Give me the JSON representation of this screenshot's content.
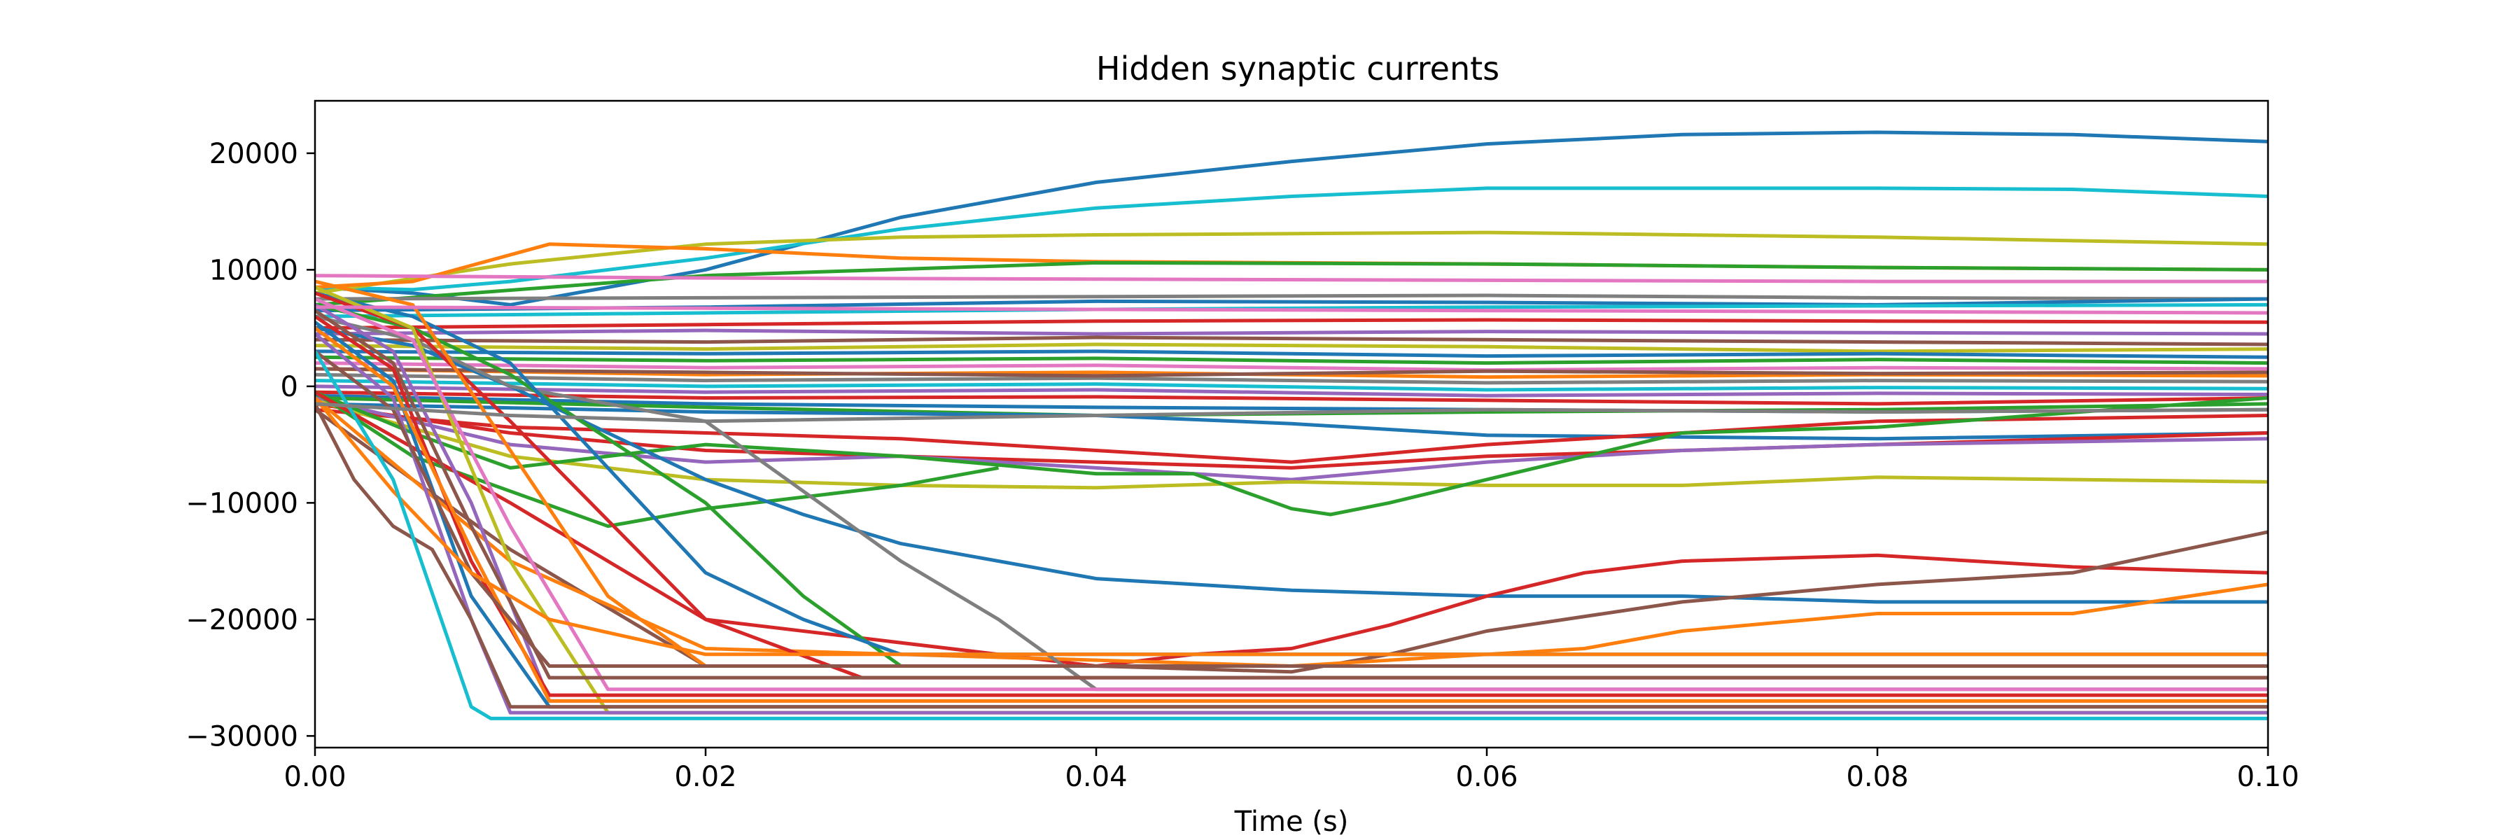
{
  "chart_data": {
    "type": "line",
    "title": "Hidden synaptic currents",
    "xlabel": "Time (s)",
    "ylabel": "",
    "xlim": [
      0,
      0.1
    ],
    "ylim": [
      -31000,
      24500
    ],
    "xticks": [
      0,
      0.02,
      0.04,
      0.06,
      0.08,
      0.1
    ],
    "xtick_labels": [
      "0.00",
      "0.02",
      "0.04",
      "0.06",
      "0.08",
      "0.10"
    ],
    "yticks": [
      -30000,
      -20000,
      -10000,
      0,
      10000,
      20000
    ],
    "ytick_labels": [
      "−30000",
      "−20000",
      "−10000",
      "0",
      "10000",
      "20000"
    ],
    "grid": false,
    "legend": "none",
    "colors": [
      "#1f77b4",
      "#ff7f0e",
      "#2ca02c",
      "#d62728",
      "#9467bd",
      "#8c564b",
      "#e377c2",
      "#7f7f7f",
      "#bcbd22",
      "#17becf"
    ],
    "series": [
      {
        "color": "#1f77b4",
        "x": [
          0,
          0.005,
          0.01,
          0.02,
          0.03,
          0.04,
          0.05,
          0.06,
          0.07,
          0.08,
          0.09,
          0.1
        ],
        "y": [
          8500,
          8000,
          7000,
          10000,
          14500,
          17500,
          19300,
          20800,
          21600,
          21800,
          21600,
          21000
        ]
      },
      {
        "color": "#17becf",
        "x": [
          0,
          0.005,
          0.01,
          0.02,
          0.03,
          0.04,
          0.05,
          0.06,
          0.07,
          0.08,
          0.09,
          0.1
        ],
        "y": [
          8500,
          8300,
          9000,
          11000,
          13500,
          15300,
          16300,
          17000,
          17000,
          17000,
          16900,
          16300
        ]
      },
      {
        "color": "#bcbd22",
        "x": [
          0,
          0.01,
          0.02,
          0.03,
          0.04,
          0.06,
          0.08,
          0.1
        ],
        "y": [
          8000,
          10500,
          12200,
          12800,
          13000,
          13200,
          12800,
          12200
        ]
      },
      {
        "color": "#ff7f0e",
        "x": [
          0,
          0.005,
          0.012,
          0.02,
          0.03,
          0.04,
          0.06,
          0.08,
          0.1
        ],
        "y": [
          8500,
          9000,
          12200,
          11800,
          11000,
          10700,
          10500,
          10200,
          10000
        ]
      },
      {
        "color": "#2ca02c",
        "x": [
          0,
          0.02,
          0.04,
          0.06,
          0.08,
          0.1
        ],
        "y": [
          7000,
          9500,
          10600,
          10500,
          10200,
          10000
        ]
      },
      {
        "color": "#e377c2",
        "x": [
          0,
          0.02,
          0.04,
          0.06,
          0.08,
          0.1
        ],
        "y": [
          9500,
          9300,
          9200,
          9100,
          9000,
          9000
        ]
      },
      {
        "color": "#7f7f7f",
        "x": [
          0,
          0.02,
          0.04,
          0.06,
          0.08,
          0.1
        ],
        "y": [
          7500,
          7600,
          7700,
          7800,
          7600,
          7500
        ]
      },
      {
        "color": "#1f77b4",
        "x": [
          0,
          0.02,
          0.04,
          0.06,
          0.08,
          0.1
        ],
        "y": [
          6500,
          6800,
          7300,
          7200,
          7000,
          7500
        ]
      },
      {
        "color": "#17becf",
        "x": [
          0,
          0.02,
          0.04,
          0.06,
          0.08,
          0.1
        ],
        "y": [
          6000,
          6300,
          6600,
          6800,
          6900,
          7000
        ]
      },
      {
        "color": "#d62728",
        "x": [
          0,
          0.02,
          0.04,
          0.06,
          0.08,
          0.1
        ],
        "y": [
          5000,
          5300,
          5600,
          5700,
          5600,
          5500
        ]
      },
      {
        "color": "#9467bd",
        "x": [
          0,
          0.02,
          0.04,
          0.06,
          0.08,
          0.1
        ],
        "y": [
          4500,
          4800,
          4500,
          4700,
          4600,
          4500
        ]
      },
      {
        "color": "#8c564b",
        "x": [
          0,
          0.02,
          0.04,
          0.06,
          0.08,
          0.1
        ],
        "y": [
          4000,
          3800,
          4200,
          4000,
          3800,
          3600
        ]
      },
      {
        "color": "#bcbd22",
        "x": [
          0,
          0.02,
          0.04,
          0.06,
          0.08,
          0.1
        ],
        "y": [
          3500,
          3200,
          3600,
          3400,
          3000,
          3200
        ]
      },
      {
        "color": "#1f77b4",
        "x": [
          0,
          0.02,
          0.04,
          0.06,
          0.08,
          0.1
        ],
        "y": [
          3000,
          2800,
          3000,
          2600,
          2800,
          2500
        ]
      },
      {
        "color": "#2ca02c",
        "x": [
          0,
          0.02,
          0.04,
          0.06,
          0.08,
          0.1
        ],
        "y": [
          2500,
          2200,
          2400,
          2000,
          2300,
          2000
        ]
      },
      {
        "color": "#e377c2",
        "x": [
          0,
          0.02,
          0.04,
          0.06,
          0.08,
          0.1
        ],
        "y": [
          2000,
          1600,
          1800,
          1400,
          1600,
          1500
        ]
      },
      {
        "color": "#ff7f0e",
        "x": [
          0,
          0.02,
          0.04,
          0.06,
          0.08,
          0.1
        ],
        "y": [
          1500,
          1000,
          1200,
          800,
          1000,
          900
        ]
      },
      {
        "color": "#7f7f7f",
        "x": [
          0,
          0.02,
          0.04,
          0.06,
          0.08,
          0.1
        ],
        "y": [
          1000,
          500,
          700,
          300,
          500,
          400
        ]
      },
      {
        "color": "#17becf",
        "x": [
          0,
          0.02,
          0.04,
          0.06,
          0.08,
          0.1
        ],
        "y": [
          500,
          0,
          200,
          -300,
          -100,
          -200
        ]
      },
      {
        "color": "#9467bd",
        "x": [
          0,
          0.02,
          0.04,
          0.06,
          0.08,
          0.1
        ],
        "y": [
          0,
          -500,
          -300,
          -800,
          -600,
          -700
        ]
      },
      {
        "color": "#d62728",
        "x": [
          0,
          0.02,
          0.04,
          0.06,
          0.08,
          0.1
        ],
        "y": [
          -500,
          -1000,
          -900,
          -1200,
          -1500,
          -1000
        ]
      },
      {
        "color": "#1f77b4",
        "x": [
          0,
          0.02,
          0.04,
          0.06,
          0.08,
          0.1
        ],
        "y": [
          -800,
          -1500,
          -1800,
          -2000,
          -2200,
          -2000
        ]
      },
      {
        "color": "#8c564b",
        "x": [
          0,
          0.02,
          0.04,
          0.06,
          0.08,
          0.1
        ],
        "y": [
          1500,
          1200,
          900,
          1300,
          1100,
          1200
        ]
      },
      {
        "color": "#2ca02c",
        "x": [
          0,
          0.02,
          0.04,
          0.06,
          0.08,
          0.1
        ],
        "y": [
          -1000,
          -1800,
          -2500,
          -2200,
          -2000,
          -1500
        ]
      },
      {
        "color": "#1f77b4",
        "x": [
          0,
          0.02,
          0.04,
          0.05,
          0.06,
          0.08,
          0.1
        ],
        "y": [
          -1500,
          -2200,
          -2500,
          -3200,
          -4200,
          -4500,
          -4000
        ]
      },
      {
        "color": "#d62728",
        "x": [
          0,
          0.01,
          0.02,
          0.03,
          0.04,
          0.05,
          0.06,
          0.07,
          0.08,
          0.1
        ],
        "y": [
          -2000,
          -3500,
          -4000,
          -4500,
          -5500,
          -6500,
          -5000,
          -4000,
          -3000,
          -2500
        ]
      },
      {
        "color": "#d62728",
        "x": [
          0,
          0.01,
          0.02,
          0.03,
          0.04,
          0.05,
          0.06,
          0.07,
          0.08,
          0.1
        ],
        "y": [
          -1500,
          -4000,
          -5500,
          -6000,
          -6500,
          -7000,
          -6000,
          -5500,
          -5000,
          -4000
        ]
      },
      {
        "color": "#9467bd",
        "x": [
          0,
          0.01,
          0.02,
          0.03,
          0.04,
          0.05,
          0.06,
          0.07,
          0.08,
          0.1
        ],
        "y": [
          -1000,
          -5000,
          -6500,
          -6000,
          -7000,
          -8000,
          -6500,
          -5500,
          -5000,
          -4500
        ]
      },
      {
        "color": "#bcbd22",
        "x": [
          0,
          0.01,
          0.02,
          0.03,
          0.04,
          0.05,
          0.06,
          0.07,
          0.08,
          0.1
        ],
        "y": [
          -1200,
          -6000,
          -8000,
          -8500,
          -8700,
          -8200,
          -8500,
          -8500,
          -7800,
          -8200
        ]
      },
      {
        "color": "#2ca02c",
        "x": [
          0,
          0.005,
          0.01,
          0.02,
          0.03,
          0.04,
          0.045,
          0.05,
          0.052,
          0.055,
          0.06,
          0.065,
          0.07,
          0.08,
          0.1
        ],
        "y": [
          -500,
          -4000,
          -7000,
          -5000,
          -6000,
          -7500,
          -7500,
          -10500,
          -11000,
          -10000,
          -8000,
          -6000,
          -4000,
          -3500,
          -1000
        ]
      },
      {
        "color": "#2ca02c",
        "x": [
          0,
          0.005,
          0.01,
          0.015,
          0.02,
          0.025,
          0.03,
          0.035
        ],
        "y": [
          -500,
          -6000,
          -9000,
          -12000,
          -10500,
          -9500,
          -8500,
          -7000
        ]
      },
      {
        "color": "#1f77b4",
        "x": [
          0,
          0.005,
          0.01,
          0.015,
          0.02,
          0.025,
          0.03,
          0.04,
          0.05,
          0.06,
          0.07,
          0.08,
          0.09,
          0.1
        ],
        "y": [
          5000,
          3500,
          0,
          -4000,
          -8000,
          -11000,
          -13500,
          -16500,
          -17500,
          -18000,
          -18000,
          -18500,
          -18500,
          -18500
        ]
      },
      {
        "color": "#d62728",
        "x": [
          0,
          0.01,
          0.02,
          0.04,
          0.045,
          0.05,
          0.055,
          0.06,
          0.065,
          0.07,
          0.08,
          0.09,
          0.1
        ],
        "y": [
          -500,
          -10000,
          -20000,
          -24000,
          -23000,
          -22500,
          -20500,
          -18000,
          -16000,
          -15000,
          -14500,
          -15500,
          -16000
        ]
      },
      {
        "color": "#8c564b",
        "x": [
          0,
          0.01,
          0.02,
          0.04,
          0.05,
          0.055,
          0.06,
          0.07,
          0.08,
          0.09,
          0.1
        ],
        "y": [
          -2000,
          -14000,
          -24000,
          -24000,
          -24500,
          -23000,
          -21000,
          -18500,
          -17000,
          -16000,
          -12500
        ]
      },
      {
        "color": "#ff7f0e",
        "x": [
          0,
          0.01,
          0.02,
          0.04,
          0.05,
          0.06,
          0.065,
          0.07,
          0.08,
          0.09,
          0.1
        ],
        "y": [
          -1000,
          -15000,
          -22500,
          -23500,
          -24000,
          -23000,
          -22500,
          -21000,
          -19500,
          -19500,
          -17000
        ]
      },
      {
        "color": "#7f7f7f",
        "x": [
          0,
          0.005,
          0.01,
          0.02,
          0.03,
          0.035,
          0.04,
          0.1
        ],
        "y": [
          6000,
          4000,
          0,
          -3000,
          -15000,
          -20000,
          -26000,
          -26000
        ]
      },
      {
        "color": "#2ca02c",
        "x": [
          0,
          0.005,
          0.01,
          0.02,
          0.025,
          0.03,
          0.1
        ],
        "y": [
          7000,
          5000,
          1000,
          -10000,
          -18000,
          -24000,
          -24000
        ]
      },
      {
        "color": "#1f77b4",
        "x": [
          0,
          0.005,
          0.01,
          0.02,
          0.025,
          0.03,
          0.1
        ],
        "y": [
          8000,
          6000,
          2000,
          -16000,
          -20000,
          -23000,
          -23000
        ]
      },
      {
        "color": "#d62728",
        "x": [
          0,
          0.005,
          0.01,
          0.02,
          0.028,
          0.1
        ],
        "y": [
          8000,
          5000,
          -3000,
          -20000,
          -25000,
          -25000
        ]
      },
      {
        "color": "#ff7f0e",
        "x": [
          0,
          0.005,
          0.015,
          0.02,
          0.1
        ],
        "y": [
          9000,
          7000,
          -18000,
          -24000,
          -24000
        ]
      },
      {
        "color": "#bcbd22",
        "x": [
          0,
          0.005,
          0.01,
          0.015,
          0.1
        ],
        "y": [
          8500,
          5000,
          -15000,
          -28000,
          -28000
        ]
      },
      {
        "color": "#e377c2",
        "x": [
          0,
          0.005,
          0.01,
          0.015,
          0.1
        ],
        "y": [
          7500,
          4000,
          -12000,
          -26000,
          -26000
        ]
      },
      {
        "color": "#9467bd",
        "x": [
          0,
          0.004,
          0.008,
          0.012,
          0.1
        ],
        "y": [
          7000,
          3000,
          -10000,
          -27000,
          -27000
        ]
      },
      {
        "color": "#8c564b",
        "x": [
          0,
          0.004,
          0.008,
          0.012,
          0.1
        ],
        "y": [
          6500,
          2000,
          -12000,
          -25000,
          -25000
        ]
      },
      {
        "color": "#d62728",
        "x": [
          0,
          0.004,
          0.008,
          0.012,
          0.1
        ],
        "y": [
          6000,
          1500,
          -15000,
          -26500,
          -26500
        ]
      },
      {
        "color": "#1f77b4",
        "x": [
          0,
          0.004,
          0.008,
          0.012,
          0.1
        ],
        "y": [
          5500,
          500,
          -18000,
          -27500,
          -27500
        ]
      },
      {
        "color": "#ff7f0e",
        "x": [
          0,
          0.004,
          0.008,
          0.012,
          0.1
        ],
        "y": [
          5000,
          0,
          -14000,
          -27000,
          -27000
        ]
      },
      {
        "color": "#9467bd",
        "x": [
          0,
          0.004,
          0.008,
          0.01,
          0.1
        ],
        "y": [
          4500,
          -1000,
          -20000,
          -28000,
          -28000
        ]
      },
      {
        "color": "#8c564b",
        "x": [
          0,
          0.004,
          0.008,
          0.012,
          0.1
        ],
        "y": [
          3000,
          -2000,
          -16000,
          -24000,
          -24000
        ]
      },
      {
        "color": "#8c564b",
        "x": [
          0,
          0.002,
          0.004,
          0.006,
          0.008,
          0.01,
          0.1
        ],
        "y": [
          -1500,
          -8000,
          -12000,
          -14000,
          -20000,
          -27500,
          -27500
        ]
      },
      {
        "color": "#ff7f0e",
        "x": [
          0,
          0.004,
          0.008,
          0.012,
          0.02,
          0.1
        ],
        "y": [
          -1000,
          -9000,
          -16000,
          -20000,
          -23000,
          -23000
        ]
      },
      {
        "color": "#17becf",
        "x": [
          0,
          0.004,
          0.008,
          0.009,
          0.1
        ],
        "y": [
          3000,
          -8000,
          -27500,
          -28500,
          -28500
        ]
      },
      {
        "color": "#7f7f7f",
        "x": [
          0,
          0.01,
          0.02,
          0.04,
          0.06,
          0.08,
          0.1
        ],
        "y": [
          -1500,
          -2500,
          -3000,
          -2500,
          -2000,
          -2200,
          -2000
        ]
      },
      {
        "color": "#e377c2",
        "x": [
          0,
          0.02,
          0.04,
          0.06,
          0.08,
          0.1
        ],
        "y": [
          6800,
          6700,
          6600,
          6500,
          6400,
          6300
        ]
      }
    ]
  }
}
